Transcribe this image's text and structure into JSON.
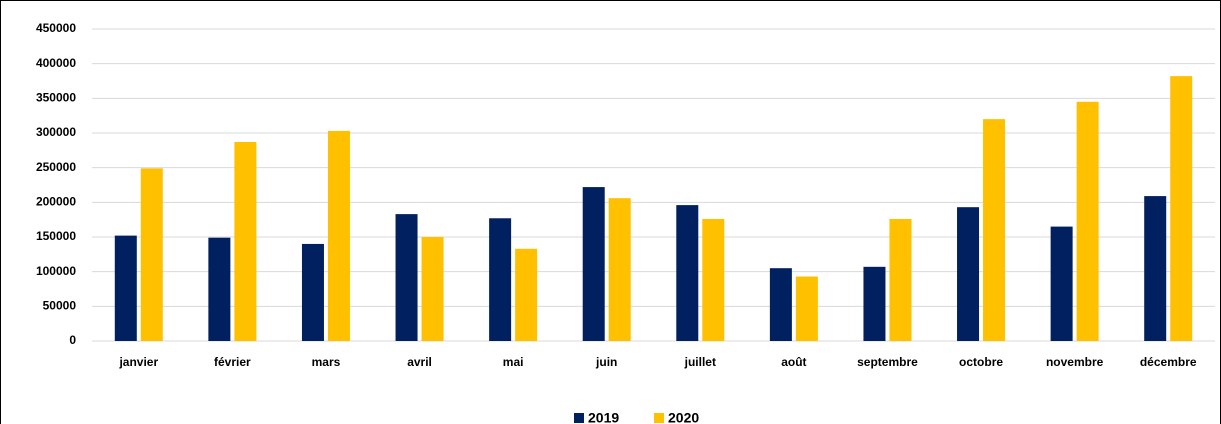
{
  "chart_data": {
    "type": "bar",
    "categories": [
      "janvier",
      "février",
      "mars",
      "avril",
      "mai",
      "juin",
      "juillet",
      "août",
      "septembre",
      "octobre",
      "novembre",
      "décembre"
    ],
    "series": [
      {
        "name": "2019",
        "color": "#002060",
        "values": [
          152000,
          149000,
          140000,
          183000,
          177000,
          222000,
          196000,
          105000,
          107000,
          193000,
          165000,
          209000
        ]
      },
      {
        "name": "2020",
        "color": "#ffc000",
        "values": [
          249000,
          287000,
          303000,
          150000,
          133000,
          206000,
          176000,
          93000,
          176000,
          320000,
          345000,
          382000
        ]
      }
    ],
    "ylim": [
      0,
      450000
    ],
    "yticks": [
      0,
      50000,
      100000,
      150000,
      200000,
      250000,
      300000,
      350000,
      400000,
      450000
    ],
    "grid": true,
    "legend": "bottom"
  }
}
